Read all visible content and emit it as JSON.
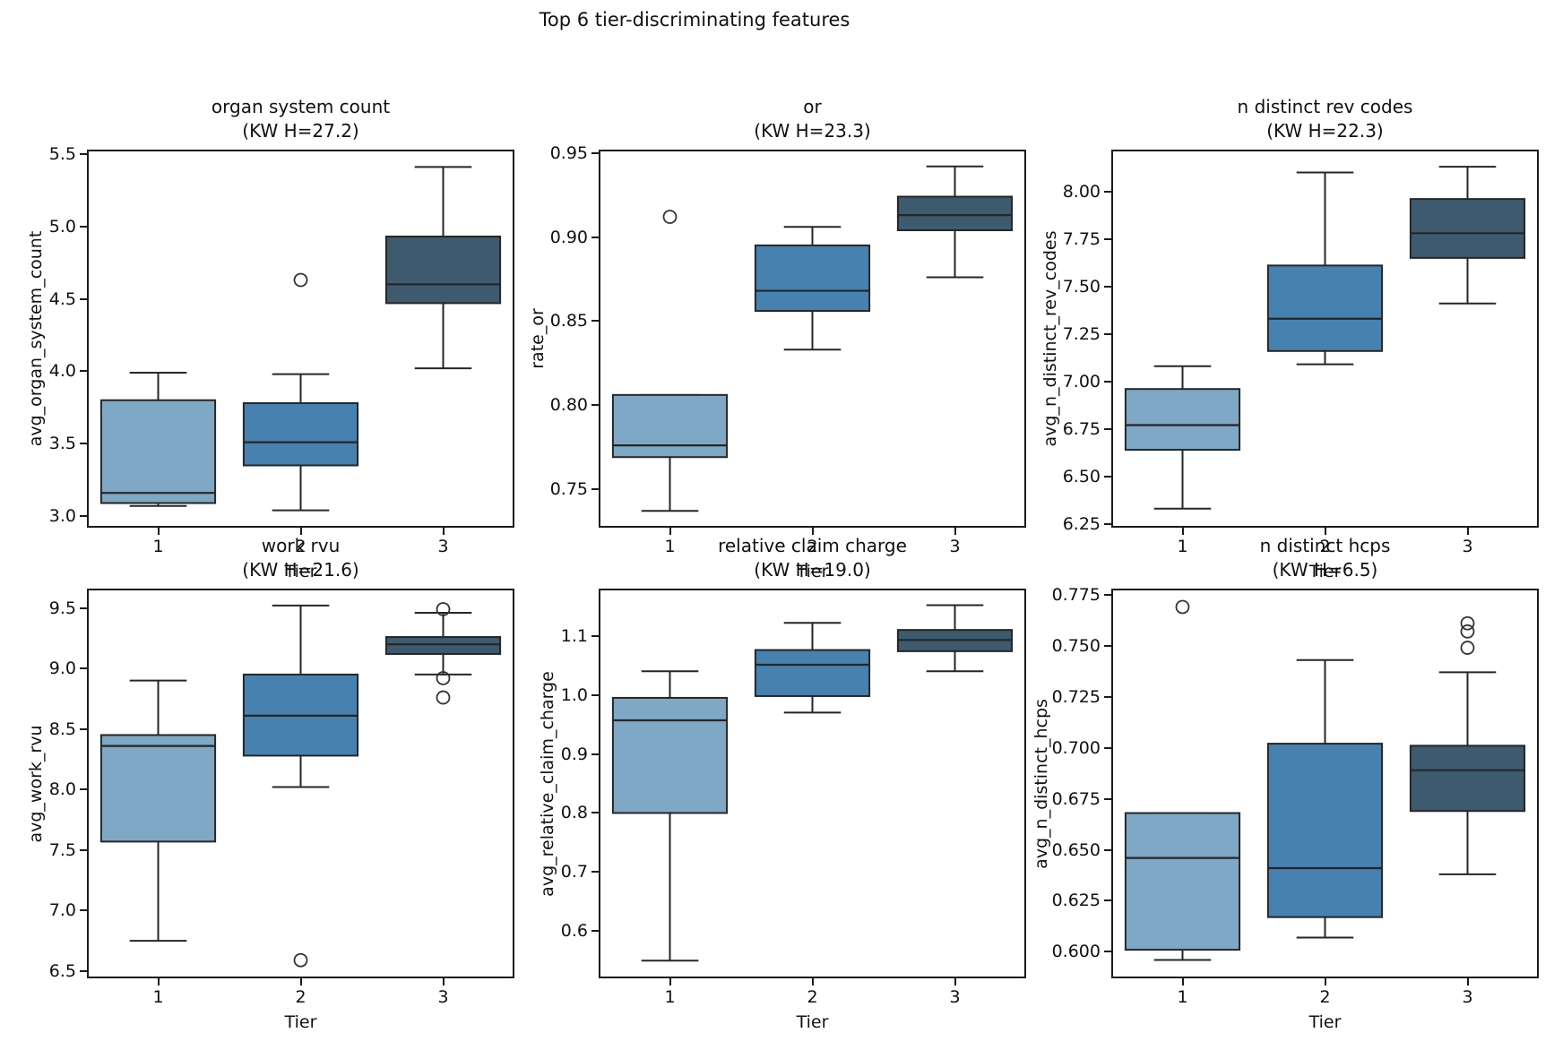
{
  "figure": {
    "title": "Top 6 tier-discriminating features",
    "background": "#ffffff"
  },
  "palette": {
    "tier_colors": [
      "#7EA8C5",
      "#4681AF",
      "#3D5A6F"
    ],
    "box_edge": "#262626",
    "spine": "#1a1a1a",
    "outlier_edge": "#333333",
    "text": "#111111"
  },
  "chart_data": [
    {
      "type": "box",
      "title": "organ system count",
      "subtitle": "(KW H=27.2)",
      "kw_h": 27.2,
      "xlabel": "Tier",
      "ylabel": "avg_organ_system_count",
      "categories": [
        "1",
        "2",
        "3"
      ],
      "xtick_labels": [
        "1",
        "2",
        "3"
      ],
      "ylim": [
        2.92,
        5.53
      ],
      "yticks": [
        3.0,
        3.5,
        4.0,
        4.5,
        5.0,
        5.5
      ],
      "ytick_labels": [
        "3.0",
        "3.5",
        "4.0",
        "4.5",
        "5.0",
        "5.5"
      ],
      "grid": false,
      "series": [
        {
          "name": "1",
          "whislo": 3.07,
          "q1": 3.09,
          "med": 3.16,
          "q3": 3.8,
          "whishi": 3.99,
          "fliers": []
        },
        {
          "name": "2",
          "whislo": 3.04,
          "q1": 3.35,
          "med": 3.51,
          "q3": 3.78,
          "whishi": 3.98,
          "fliers": [
            4.63
          ]
        },
        {
          "name": "3",
          "whislo": 4.02,
          "q1": 4.47,
          "med": 4.6,
          "q3": 4.93,
          "whishi": 5.41,
          "fliers": []
        }
      ]
    },
    {
      "type": "box",
      "title": "or",
      "subtitle": "(KW H=23.3)",
      "kw_h": 23.3,
      "xlabel": "Tier",
      "ylabel": "rate_or",
      "categories": [
        "1",
        "2",
        "3"
      ],
      "xtick_labels": [
        "1",
        "2",
        "3"
      ],
      "ylim": [
        0.727,
        0.952
      ],
      "yticks": [
        0.75,
        0.8,
        0.85,
        0.9,
        0.95
      ],
      "ytick_labels": [
        "0.75",
        "0.80",
        "0.85",
        "0.90",
        "0.95"
      ],
      "grid": false,
      "series": [
        {
          "name": "1",
          "whislo": 0.737,
          "q1": 0.769,
          "med": 0.776,
          "q3": 0.806,
          "whishi": 0.806,
          "fliers": [
            0.912
          ]
        },
        {
          "name": "2",
          "whislo": 0.833,
          "q1": 0.856,
          "med": 0.868,
          "q3": 0.895,
          "whishi": 0.906,
          "fliers": []
        },
        {
          "name": "3",
          "whislo": 0.876,
          "q1": 0.904,
          "med": 0.913,
          "q3": 0.924,
          "whishi": 0.942,
          "fliers": []
        }
      ]
    },
    {
      "type": "box",
      "title": "n distinct rev codes",
      "subtitle": "(KW H=22.3)",
      "kw_h": 22.3,
      "xlabel": "Tier",
      "ylabel": "avg_n_distinct_rev_codes",
      "categories": [
        "1",
        "2",
        "3"
      ],
      "xtick_labels": [
        "1",
        "2",
        "3"
      ],
      "ylim": [
        6.23,
        8.22
      ],
      "yticks": [
        6.25,
        6.5,
        6.75,
        7.0,
        7.25,
        7.5,
        7.75,
        8.0
      ],
      "ytick_labels": [
        "6.25",
        "6.50",
        "6.75",
        "7.00",
        "7.25",
        "7.50",
        "7.75",
        "8.00"
      ],
      "grid": false,
      "series": [
        {
          "name": "1",
          "whislo": 6.33,
          "q1": 6.64,
          "med": 6.77,
          "q3": 6.96,
          "whishi": 7.08,
          "fliers": []
        },
        {
          "name": "2",
          "whislo": 7.09,
          "q1": 7.16,
          "med": 7.33,
          "q3": 7.61,
          "whishi": 8.1,
          "fliers": []
        },
        {
          "name": "3",
          "whislo": 7.41,
          "q1": 7.65,
          "med": 7.78,
          "q3": 7.96,
          "whishi": 8.13,
          "fliers": []
        }
      ]
    },
    {
      "type": "box",
      "title": "work rvu",
      "subtitle": "(KW H=21.6)",
      "kw_h": 21.6,
      "xlabel": "Tier",
      "ylabel": "avg_work_rvu",
      "categories": [
        "1",
        "2",
        "3"
      ],
      "xtick_labels": [
        "1",
        "2",
        "3"
      ],
      "ylim": [
        6.44,
        9.66
      ],
      "yticks": [
        6.5,
        7.0,
        7.5,
        8.0,
        8.5,
        9.0,
        9.5
      ],
      "ytick_labels": [
        "6.5",
        "7.0",
        "7.5",
        "8.0",
        "8.5",
        "9.0",
        "9.5"
      ],
      "grid": false,
      "series": [
        {
          "name": "1",
          "whislo": 6.75,
          "q1": 7.57,
          "med": 8.36,
          "q3": 8.45,
          "whishi": 8.9,
          "fliers": []
        },
        {
          "name": "2",
          "whislo": 8.02,
          "q1": 8.28,
          "med": 8.61,
          "q3": 8.95,
          "whishi": 9.52,
          "fliers": [
            6.59
          ]
        },
        {
          "name": "3",
          "whislo": 8.95,
          "q1": 9.12,
          "med": 9.2,
          "q3": 9.26,
          "whishi": 9.46,
          "fliers": [
            9.49,
            8.92,
            8.76
          ]
        }
      ]
    },
    {
      "type": "box",
      "title": "relative claim charge",
      "subtitle": "(KW H=19.0)",
      "kw_h": 19.0,
      "xlabel": "Tier",
      "ylabel": "avg_relative_claim_charge",
      "categories": [
        "1",
        "2",
        "3"
      ],
      "xtick_labels": [
        "1",
        "2",
        "3"
      ],
      "ylim": [
        0.52,
        1.18
      ],
      "yticks": [
        0.6,
        0.7,
        0.8,
        0.9,
        1.0,
        1.1
      ],
      "ytick_labels": [
        "0.6",
        "0.7",
        "0.8",
        "0.9",
        "1.0",
        "1.1"
      ],
      "grid": false,
      "series": [
        {
          "name": "1",
          "whislo": 0.55,
          "q1": 0.8,
          "med": 0.957,
          "q3": 0.995,
          "whishi": 1.04,
          "fliers": []
        },
        {
          "name": "2",
          "whislo": 0.97,
          "q1": 0.998,
          "med": 1.051,
          "q3": 1.076,
          "whishi": 1.122,
          "fliers": []
        },
        {
          "name": "3",
          "whislo": 1.04,
          "q1": 1.074,
          "med": 1.093,
          "q3": 1.11,
          "whishi": 1.152,
          "fliers": []
        }
      ]
    },
    {
      "type": "box",
      "title": "n distinct hcps",
      "subtitle": "(KW H=6.5)",
      "kw_h": 6.5,
      "xlabel": "Tier",
      "ylabel": "avg_n_distinct_hcps",
      "categories": [
        "1",
        "2",
        "3"
      ],
      "xtick_labels": [
        "1",
        "2",
        "3"
      ],
      "ylim": [
        0.587,
        0.778
      ],
      "yticks": [
        0.6,
        0.625,
        0.65,
        0.675,
        0.7,
        0.725,
        0.75,
        0.775
      ],
      "ytick_labels": [
        "0.600",
        "0.625",
        "0.650",
        "0.675",
        "0.700",
        "0.725",
        "0.750",
        "0.775"
      ],
      "grid": false,
      "series": [
        {
          "name": "1",
          "whislo": 0.596,
          "q1": 0.601,
          "med": 0.646,
          "q3": 0.668,
          "whishi": 0.668,
          "fliers": [
            0.769
          ]
        },
        {
          "name": "2",
          "whislo": 0.607,
          "q1": 0.617,
          "med": 0.641,
          "q3": 0.702,
          "whishi": 0.743,
          "fliers": []
        },
        {
          "name": "3",
          "whislo": 0.638,
          "q1": 0.669,
          "med": 0.689,
          "q3": 0.701,
          "whishi": 0.737,
          "fliers": [
            0.761,
            0.757,
            0.749
          ]
        }
      ]
    }
  ]
}
